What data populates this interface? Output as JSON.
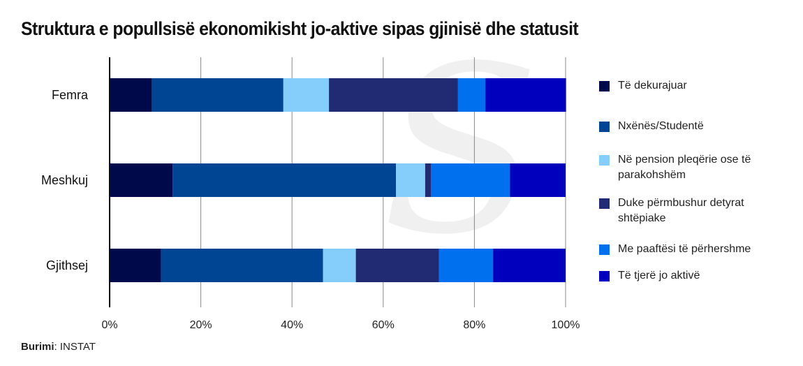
{
  "title": "Struktura e popullsisë ekonomikisht jo-aktive sipas gjinisë dhe statusit",
  "source": {
    "label": "Burimi",
    "value": "INSTAT"
  },
  "chart_data": {
    "type": "bar",
    "orientation": "horizontal",
    "stacked": "percent",
    "categories": [
      "Femra",
      "Meshkuj",
      "Gjithsej"
    ],
    "series": [
      {
        "name": "Të dekurajuar",
        "color": "#000a4a",
        "values": [
          9.3,
          13.8,
          11.3
        ]
      },
      {
        "name": "Nxënës/Studentë",
        "color": "#004494",
        "values": [
          28.8,
          49.0,
          35.5
        ]
      },
      {
        "name": "Në pension pleqërie ose të parakohshëm",
        "color": "#85cdfa",
        "values": [
          10.0,
          6.4,
          7.2
        ]
      },
      {
        "name": "Duke përmbushur detyrat shtëpiake",
        "color": "#212b73",
        "values": [
          28.3,
          1.3,
          18.2
        ]
      },
      {
        "name": "Me paaftësi të përhershme",
        "color": "#0070ee",
        "values": [
          6.0,
          17.3,
          11.9
        ]
      },
      {
        "name": "Të tjerë jo aktivë",
        "color": "#0000bd",
        "values": [
          17.7,
          12.2,
          15.9
        ]
      }
    ],
    "xticks": [
      "0%",
      "20%",
      "40%",
      "60%",
      "80%",
      "100%"
    ],
    "xlim": [
      0,
      100
    ],
    "grid": true,
    "legend": "right"
  }
}
